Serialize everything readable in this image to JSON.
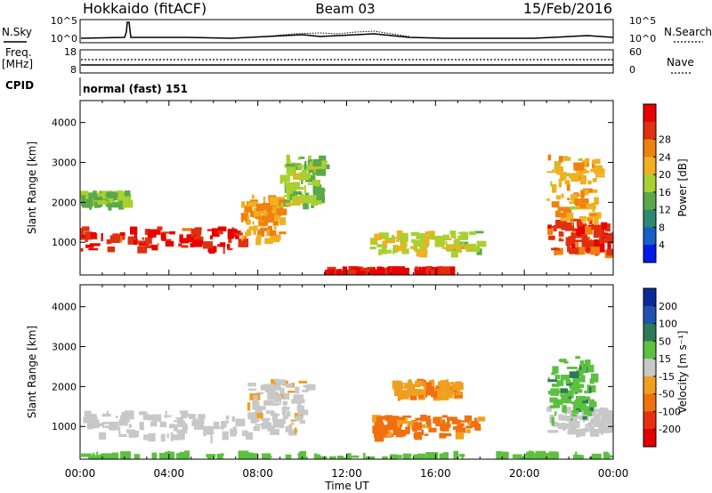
{
  "header": {
    "station": "Hokkaido (fitACF)",
    "beam": "Beam 03",
    "date": "15/Feb/2016"
  },
  "strip_labels": {
    "nsky": "N.Sky",
    "nsky_ticks": [
      "10^5",
      "10^0"
    ],
    "nsearch": "N.Search",
    "nsearch_ticks": [
      "10^5",
      "10^0"
    ],
    "freq": "Freq.",
    "freq_unit": "[MHz]",
    "freq_ticks": [
      "18",
      "8"
    ],
    "nave": "Nave",
    "nave_ticks": [
      "60",
      "0"
    ],
    "cpid": "CPID",
    "mode": "normal (fast) 151"
  },
  "axes": {
    "ylabel": "Slant Range [km]",
    "y_ticks": [
      "1000",
      "2000",
      "3000",
      "4000"
    ],
    "x_ticks": [
      "00:00",
      "04:00",
      "08:00",
      "12:00",
      "16:00",
      "20:00",
      "00:00"
    ],
    "xlabel": "Time UT"
  },
  "colorbars": {
    "power": {
      "label": "Power [dB]",
      "ticks": [
        "4",
        "8",
        "12",
        "16",
        "20",
        "24",
        "28"
      ],
      "colors": [
        "#0018e8",
        "#1860c8",
        "#2e8a6e",
        "#5aa84a",
        "#a8d030",
        "#f0b020",
        "#f08010",
        "#e03010",
        "#e80000"
      ]
    },
    "velocity": {
      "label": "Velocity [m s⁻¹]",
      "ticks": [
        "200",
        "100",
        "50",
        "15",
        "-15",
        "-50",
        "-100",
        "-200"
      ],
      "colors": [
        "#0a2a9a",
        "#2050b0",
        "#2e7a58",
        "#5cc040",
        "#c8c8c8",
        "#f0a020",
        "#f07010",
        "#e83010",
        "#e00000"
      ]
    }
  },
  "chart_data": [
    {
      "type": "heatmap",
      "title": "Power",
      "x": "Time UT (hours)",
      "y": "Slant Range [km]",
      "xlim": [
        0,
        24
      ],
      "ylim": [
        180,
        4550
      ],
      "colorscale": "Power [dB]",
      "regions": [
        {
          "t": [
            0.0,
            7.2
          ],
          "range": [
            850,
            1400
          ],
          "value": 26
        },
        {
          "t": [
            7.2,
            9.0
          ],
          "range": [
            1100,
            2200
          ],
          "value": 20
        },
        {
          "t": [
            0.0,
            2.0
          ],
          "range": [
            2000,
            2300
          ],
          "value": 13
        },
        {
          "t": [
            9.0,
            10.8
          ],
          "range": [
            1900,
            3200
          ],
          "value": 14
        },
        {
          "t": [
            13.0,
            18.0
          ],
          "range": [
            800,
            1300
          ],
          "value": 16
        },
        {
          "t": [
            11.0,
            14.5
          ],
          "range": [
            200,
            320
          ],
          "value": 28
        },
        {
          "t": [
            15.0,
            16.5
          ],
          "range": [
            200,
            320
          ],
          "value": 27
        },
        {
          "t": [
            21.0,
            24.0
          ],
          "range": [
            800,
            1600
          ],
          "value": 25
        },
        {
          "t": [
            21.0,
            23.2
          ],
          "range": [
            1600,
            3200
          ],
          "value": 19
        }
      ]
    },
    {
      "type": "heatmap",
      "title": "Velocity",
      "x": "Time UT (hours)",
      "y": "Slant Range [km]",
      "xlim": [
        0,
        24
      ],
      "ylim": [
        180,
        4550
      ],
      "colorscale": "Velocity [m s-1]",
      "regions": [
        {
          "t": [
            0.0,
            7.5
          ],
          "range": [
            780,
            1400
          ],
          "value": 0
        },
        {
          "t": [
            7.5,
            10.2
          ],
          "range": [
            900,
            2200
          ],
          "value": -5
        },
        {
          "t": [
            13.0,
            18.0
          ],
          "range": [
            800,
            1300
          ],
          "value": -60
        },
        {
          "t": [
            14.0,
            17.0
          ],
          "range": [
            1800,
            2200
          ],
          "value": -40
        },
        {
          "t": [
            21.0,
            24.0
          ],
          "range": [
            900,
            1500
          ],
          "value": 0
        },
        {
          "t": [
            21.0,
            23.0
          ],
          "range": [
            1200,
            2800
          ],
          "value": 40
        },
        {
          "t": [
            0.0,
            24.0
          ],
          "range": [
            200,
            330
          ],
          "value": 30
        }
      ]
    }
  ]
}
